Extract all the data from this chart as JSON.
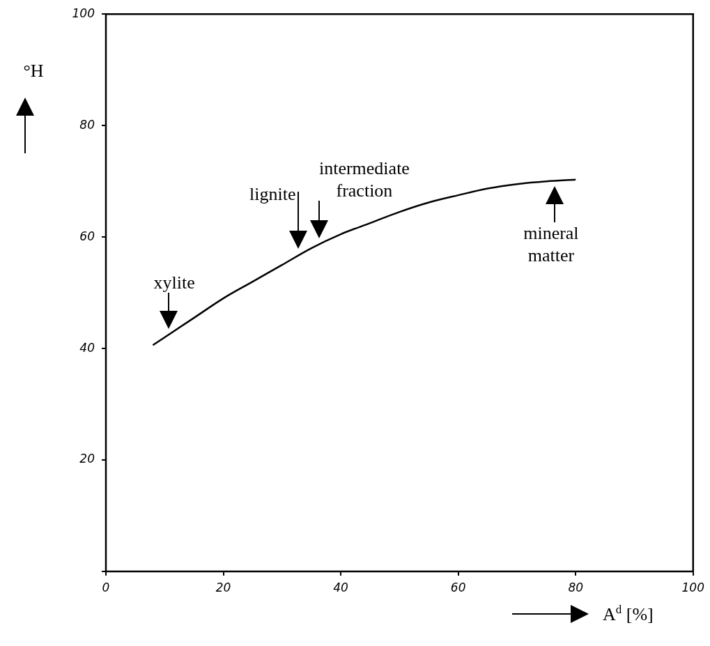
{
  "chart_data": {
    "type": "line",
    "xlabel": "A$^{d}$ [%]",
    "ylabel": "°H",
    "x": [
      8,
      15,
      20,
      25,
      30,
      35,
      40,
      45,
      50,
      55,
      60,
      65,
      70,
      75,
      80
    ],
    "series": [
      {
        "color": "#000000",
        "values": [
          40.6,
          45.5,
          49,
          52,
          55,
          58,
          60.5,
          62.5,
          64.5,
          66.2,
          67.5,
          68.7,
          69.5,
          70,
          70.3
        ]
      }
    ],
    "xlim": [
      0,
      100
    ],
    "xticks": [
      0,
      20,
      40,
      60,
      80,
      100
    ],
    "ylim": [
      0,
      100
    ],
    "yticks": [
      {
        "value": 0,
        "label": null
      },
      20,
      40,
      60,
      80,
      100
    ],
    "grid": false,
    "marker": "none",
    "line_style": "solid",
    "annotations": [
      {
        "text": "xylite",
        "x": 10.7,
        "y": 42.5
      },
      {
        "text": "lignite",
        "x": 32.8,
        "y": 56.9
      },
      {
        "text": "intermediate fraction",
        "x": 36.3,
        "y": 58.8
      },
      {
        "text": "mineral matter",
        "x": 76.4,
        "y": 70.1
      }
    ]
  }
}
